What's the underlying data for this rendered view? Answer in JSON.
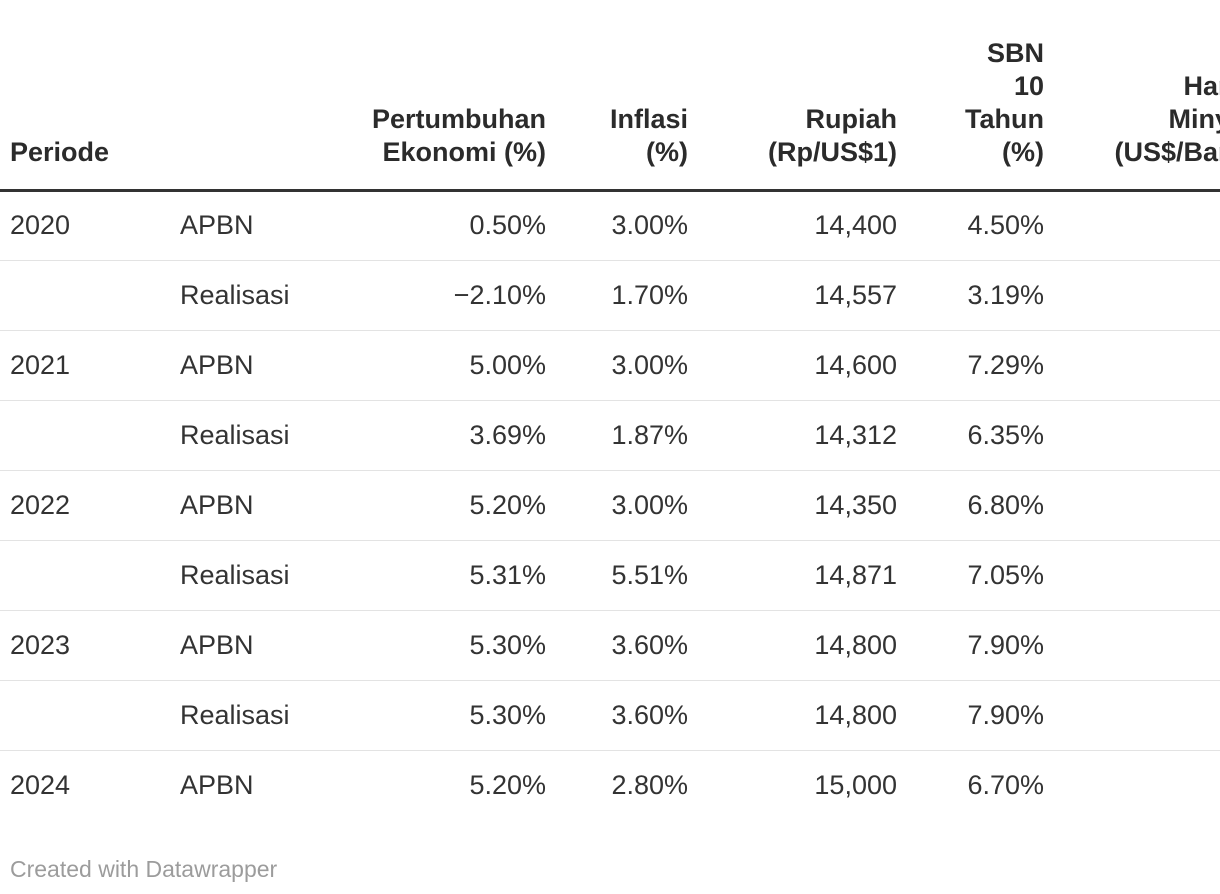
{
  "chart_data": {
    "type": "table",
    "tool": "Datawrapper",
    "columns": [
      {
        "id": "periode",
        "label": "Periode",
        "align": "left"
      },
      {
        "id": "anggaran",
        "label": "",
        "align": "left"
      },
      {
        "id": "pertumbuhan",
        "label": "Pertumbuhan\nEkonomi (%)",
        "align": "right"
      },
      {
        "id": "inflasi",
        "label": "Inflasi\n(%)",
        "align": "right"
      },
      {
        "id": "rupiah",
        "label": "Rupiah\n(Rp/US$1)",
        "align": "right"
      },
      {
        "id": "sbn",
        "label": "SBN\n10\nTahun\n(%)",
        "align": "right"
      },
      {
        "id": "harga_minyak",
        "label": "Harga\nMinyak\n(US$/Barel)",
        "align": "right",
        "clipped_by_viewport": true
      }
    ],
    "rows": [
      [
        "2020",
        "APBN",
        "0.50%",
        "3.00%",
        "14,400",
        "4.50%",
        ""
      ],
      [
        "",
        "Realisasi",
        "−2.10%",
        "1.70%",
        "14,557",
        "3.19%",
        ""
      ],
      [
        "2021",
        "APBN",
        "5.00%",
        "3.00%",
        "14,600",
        "7.29%",
        ""
      ],
      [
        "",
        "Realisasi",
        "3.69%",
        "1.87%",
        "14,312",
        "6.35%",
        ""
      ],
      [
        "2022",
        "APBN",
        "5.20%",
        "3.00%",
        "14,350",
        "6.80%",
        ""
      ],
      [
        "",
        "Realisasi",
        "5.31%",
        "5.51%",
        "14,871",
        "7.05%",
        ""
      ],
      [
        "2023",
        "APBN",
        "5.30%",
        "3.60%",
        "14,800",
        "7.90%",
        ""
      ],
      [
        "",
        "Realisasi",
        "5.30%",
        "3.60%",
        "14,800",
        "7.90%",
        ""
      ],
      [
        "2024",
        "APBN",
        "5.20%",
        "2.80%",
        "15,000",
        "6.70%",
        ""
      ]
    ]
  },
  "footer": {
    "credit_label": "Created with Datawrapper"
  },
  "colors": {
    "background": "#ffffff",
    "header_text": "#2b2b2b",
    "body_text": "#333333",
    "header_rule": "#333333",
    "row_separator": "#e3e3e3",
    "credit_text": "#9c9c9c"
  }
}
